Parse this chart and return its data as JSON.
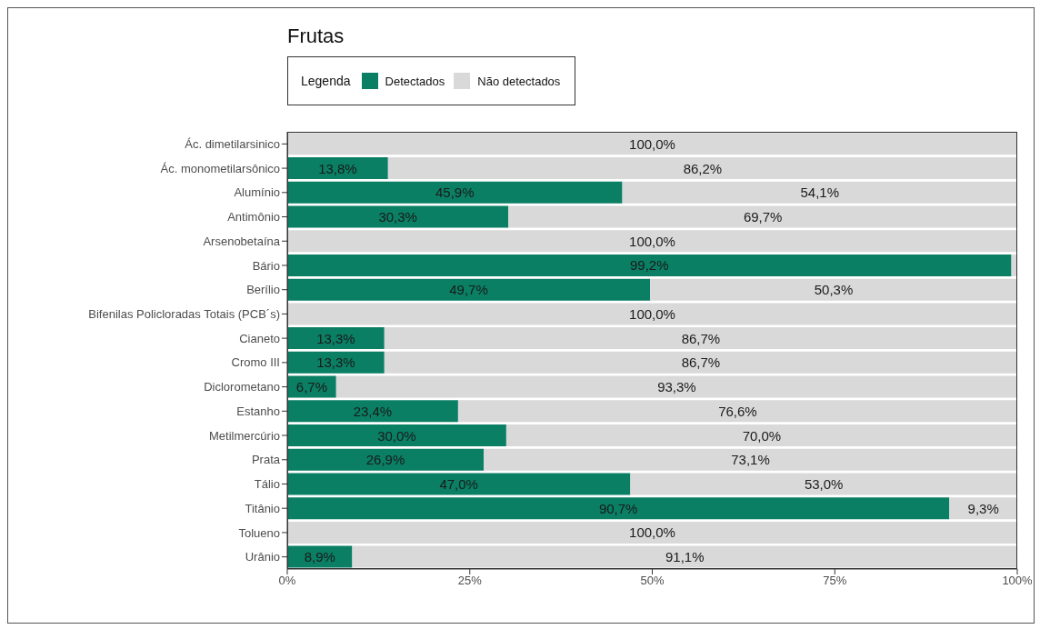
{
  "chart_data": {
    "type": "bar",
    "title": "Frutas",
    "legend_title": "Legenda",
    "orientation": "horizontal",
    "stacked": true,
    "legend": "top",
    "categories": [
      "Ác. dimetilarsinico",
      "Ác. monometilarsônico",
      "Alumínio",
      "Antimônio",
      "Arsenobetaína",
      "Bário",
      "Berílio",
      "Bifenilas Policloradas Totais (PCB´s)",
      "Cianeto",
      "Cromo III",
      "Diclorometano",
      "Estanho",
      "Metilmercúrio",
      "Prata",
      "Tálio",
      "Titânio",
      "Tolueno",
      "Urânio"
    ],
    "series": [
      {
        "name": "Detectados",
        "color": "#0a7f64",
        "values": [
          0,
          13.8,
          45.9,
          30.3,
          0,
          99.2,
          49.7,
          0,
          13.3,
          13.3,
          6.7,
          23.4,
          30.0,
          26.9,
          47.0,
          90.7,
          0,
          8.9
        ],
        "value_labels": [
          null,
          "13,8%",
          "45,9%",
          "30,3%",
          null,
          "99,2%",
          "49,7%",
          null,
          "13,3%",
          "13,3%",
          "6,7%",
          "23,4%",
          "30,0%",
          "26,9%",
          "47,0%",
          "90,7%",
          null,
          "8,9%"
        ]
      },
      {
        "name": "Não detectados",
        "color": "#d9d9d9",
        "values": [
          100,
          86.2,
          54.1,
          69.7,
          100,
          0.8,
          50.3,
          100,
          86.7,
          86.7,
          93.3,
          76.6,
          70.0,
          73.1,
          53.0,
          9.3,
          100,
          91.1
        ],
        "value_labels": [
          "100,0%",
          "86,2%",
          "54,1%",
          "69,7%",
          "100,0%",
          null,
          "50,3%",
          "100,0%",
          "86,7%",
          "86,7%",
          "93,3%",
          "76,6%",
          "70,0%",
          "73,1%",
          "53,0%",
          "9,3%",
          "100,0%",
          "91,1%"
        ]
      }
    ],
    "xlim": [
      0,
      100
    ],
    "xticks": [
      {
        "value": 0,
        "label": "0%"
      },
      {
        "value": 25,
        "label": "25%"
      },
      {
        "value": 50,
        "label": "50%"
      },
      {
        "value": 75,
        "label": "75%"
      },
      {
        "value": 100,
        "label": "100%"
      }
    ],
    "grid": false
  }
}
